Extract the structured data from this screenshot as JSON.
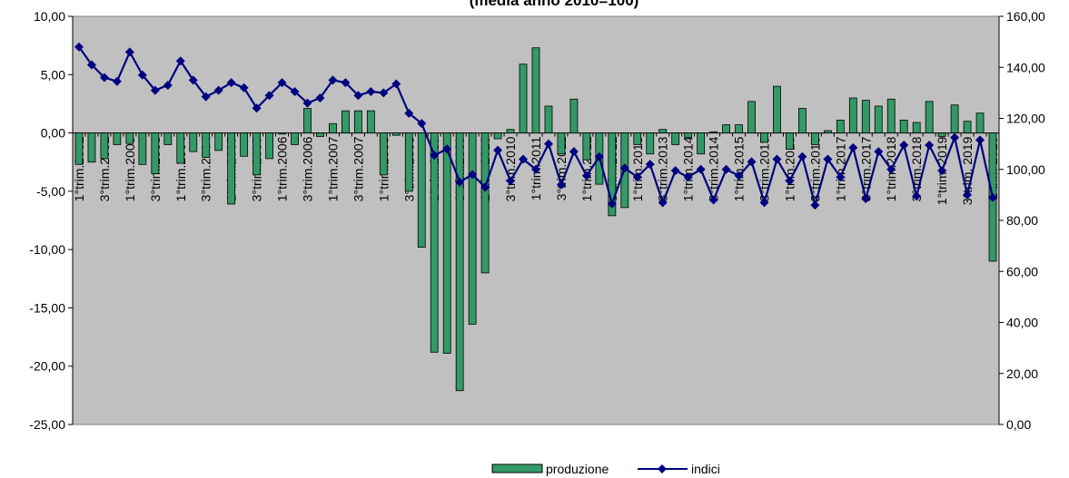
{
  "chart_data": {
    "type": "bar-line",
    "title": "(media anno 2010=100)",
    "categories": [
      "1°trim.2002",
      null,
      "3°trim.2002",
      null,
      "1°trim.2003",
      null,
      "3°trim.2003",
      null,
      "1°trim.2004",
      null,
      "3°trim.2004",
      null,
      "1°trim.2005",
      null,
      "3°trim.2005",
      null,
      "1°trim.2006",
      null,
      "3°trim.2006",
      null,
      "1°trim.2007",
      null,
      "3°trim.2007",
      null,
      "1°trim.2008",
      null,
      "3°trim.2008",
      null,
      "1°trim.2009",
      null,
      "3°trim.2009",
      null,
      "1°trim.2010",
      null,
      "3°trim.2010",
      null,
      "1°trim.2011",
      null,
      "3°trim.2011",
      null,
      "1°trim.2012",
      null,
      "3°trim.2012",
      null,
      "1°trim.2013",
      null,
      "3°trim.2013",
      null,
      "1°trim.2014",
      null,
      "3°trim.2014",
      null,
      "1°trim.2015",
      null,
      "3°trim.2015",
      null,
      "1°trim.2016",
      null,
      "3°trim.2016",
      null,
      "1°trim.2017",
      null,
      "3°trim.2017",
      null,
      "1°trim.2018",
      null,
      "3°trim.2018",
      null,
      "1°trim. 2019",
      null,
      "3°trim. 2019",
      null,
      "1 trim 2020"
    ],
    "series": [
      {
        "name": "produzione",
        "kind": "bar",
        "color": "#339966",
        "values": [
          -2.7,
          -2.5,
          -2.2,
          -1.0,
          -0.9,
          -2.7,
          -3.5,
          -1.0,
          -2.6,
          -1.6,
          -2.1,
          -1.5,
          -6.1,
          -2.0,
          -3.6,
          -2.2,
          -0.1,
          -1.0,
          2.1,
          -0.3,
          0.8,
          1.9,
          1.9,
          1.9,
          -3.6,
          -0.2,
          -5.0,
          -9.8,
          -18.8,
          -18.9,
          -22.1,
          -16.4,
          -12.0,
          -0.5,
          0.3,
          5.9,
          7.3,
          2.3,
          -1.8,
          2.9,
          -2.3,
          -4.4,
          -7.1,
          -6.4,
          -1.0,
          -1.8,
          0.3,
          -1.0,
          -0.4,
          -1.8,
          0.1,
          0.7,
          0.7,
          2.7,
          -0.8,
          4.0,
          -1.4,
          2.1,
          -1.0,
          0.2,
          1.1,
          3.0,
          2.8,
          2.3,
          2.9,
          1.1,
          0.9,
          2.7,
          -0.3,
          2.4,
          1.0,
          1.7,
          -11.0
        ]
      },
      {
        "name": "indici",
        "kind": "line",
        "axis": "y2",
        "color": "#000080",
        "values": [
          148,
          141,
          136,
          134.5,
          146,
          137,
          131,
          133,
          142.5,
          135,
          128.5,
          131,
          134,
          132,
          124,
          129,
          134,
          130.5,
          126,
          128,
          135,
          134,
          129,
          130.5,
          130,
          133.5,
          122,
          118,
          105.5,
          108,
          95,
          98,
          93,
          107.5,
          95.5,
          104,
          100,
          110,
          94,
          107,
          97.5,
          105,
          86.5,
          100.5,
          97,
          102,
          87,
          99.5,
          97,
          100,
          88,
          100,
          97.5,
          103,
          87,
          104,
          95.5,
          105,
          86,
          104,
          97,
          108.5,
          88.5,
          107,
          100,
          109.5,
          89.5,
          109.5,
          99.5,
          112.5,
          90,
          111.5,
          89
        ]
      }
    ],
    "ylim": [
      -25,
      10
    ],
    "yticks": [
      {
        "value": -25,
        "label": "-25,00"
      },
      {
        "value": -20,
        "label": "-20,00"
      },
      {
        "value": -15,
        "label": "-15,00"
      },
      {
        "value": -10,
        "label": "-10,00"
      },
      {
        "value": -5,
        "label": "-5,00"
      },
      {
        "value": 0,
        "label": "0,00"
      },
      {
        "value": 5,
        "label": "5,00"
      },
      {
        "value": 10,
        "label": "10,00"
      }
    ],
    "y2lim": [
      0,
      160
    ],
    "y2ticks": [
      {
        "value": 0,
        "label": "0,00"
      },
      {
        "value": 20,
        "label": "20,00"
      },
      {
        "value": 40,
        "label": "40,00"
      },
      {
        "value": 60,
        "label": "60,00"
      },
      {
        "value": 80,
        "label": "80,00"
      },
      {
        "value": 100,
        "label": "100,00"
      },
      {
        "value": 120,
        "label": "120,00"
      },
      {
        "value": 140,
        "label": "140,00"
      },
      {
        "value": 160,
        "label": "160,00"
      }
    ],
    "legend": "bottom",
    "plot_background": "#c0c0c0"
  }
}
